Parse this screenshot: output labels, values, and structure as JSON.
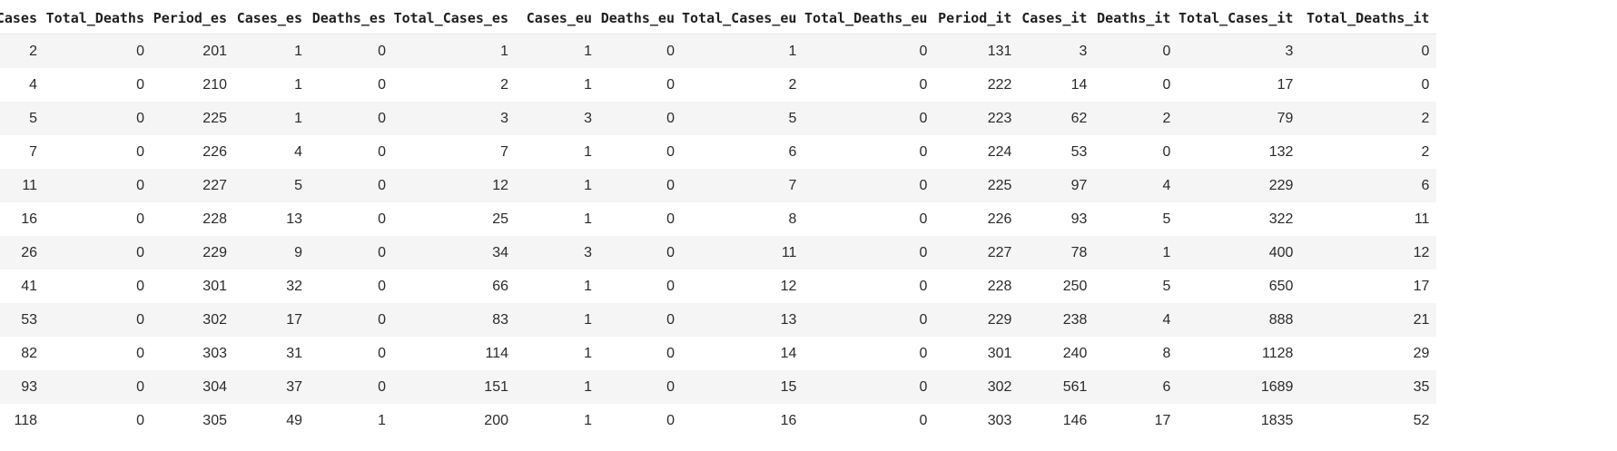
{
  "table": {
    "columns": [
      "Cases",
      "Total_Deaths",
      "Period_es",
      "Cases_es",
      "Deaths_es",
      "Total_Cases_es",
      "Cases_eu",
      "Deaths_eu",
      "Total_Cases_eu",
      "Total_Deaths_eu",
      "Period_it",
      "Cases_it",
      "Deaths_it",
      "Total_Cases_it",
      "Total_Deaths_it"
    ],
    "rows": [
      [
        "2",
        "0",
        "201",
        "1",
        "0",
        "1",
        "1",
        "0",
        "1",
        "0",
        "131",
        "3",
        "0",
        "3",
        "0"
      ],
      [
        "4",
        "0",
        "210",
        "1",
        "0",
        "2",
        "1",
        "0",
        "2",
        "0",
        "222",
        "14",
        "0",
        "17",
        "0"
      ],
      [
        "5",
        "0",
        "225",
        "1",
        "0",
        "3",
        "3",
        "0",
        "5",
        "0",
        "223",
        "62",
        "2",
        "79",
        "2"
      ],
      [
        "7",
        "0",
        "226",
        "4",
        "0",
        "7",
        "1",
        "0",
        "6",
        "0",
        "224",
        "53",
        "0",
        "132",
        "2"
      ],
      [
        "11",
        "0",
        "227",
        "5",
        "0",
        "12",
        "1",
        "0",
        "7",
        "0",
        "225",
        "97",
        "4",
        "229",
        "6"
      ],
      [
        "16",
        "0",
        "228",
        "13",
        "0",
        "25",
        "1",
        "0",
        "8",
        "0",
        "226",
        "93",
        "5",
        "322",
        "11"
      ],
      [
        "26",
        "0",
        "229",
        "9",
        "0",
        "34",
        "3",
        "0",
        "11",
        "0",
        "227",
        "78",
        "1",
        "400",
        "12"
      ],
      [
        "41",
        "0",
        "301",
        "32",
        "0",
        "66",
        "1",
        "0",
        "12",
        "0",
        "228",
        "250",
        "5",
        "650",
        "17"
      ],
      [
        "53",
        "0",
        "302",
        "17",
        "0",
        "83",
        "1",
        "0",
        "13",
        "0",
        "229",
        "238",
        "4",
        "888",
        "21"
      ],
      [
        "82",
        "0",
        "303",
        "31",
        "0",
        "114",
        "1",
        "0",
        "14",
        "0",
        "301",
        "240",
        "8",
        "1128",
        "29"
      ],
      [
        "93",
        "0",
        "304",
        "37",
        "0",
        "151",
        "1",
        "0",
        "15",
        "0",
        "302",
        "561",
        "6",
        "1689",
        "35"
      ],
      [
        "118",
        "0",
        "305",
        "49",
        "1",
        "200",
        "1",
        "0",
        "16",
        "0",
        "303",
        "146",
        "17",
        "1835",
        "52"
      ]
    ]
  }
}
